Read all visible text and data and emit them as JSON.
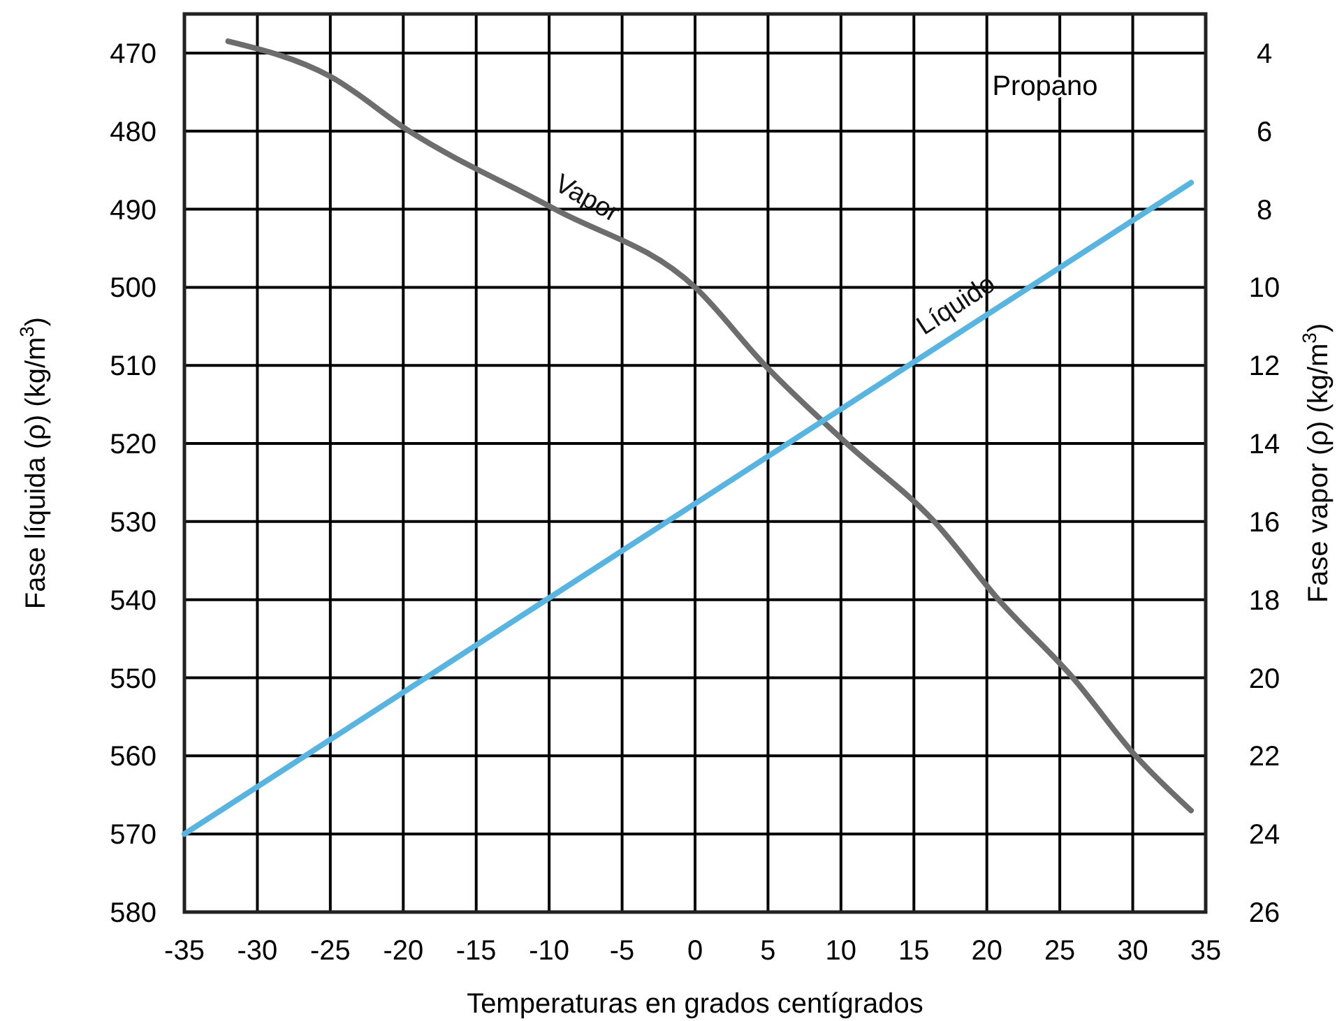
{
  "chart_data": {
    "type": "line",
    "xlabel": "Temperaturas en grados centígrados",
    "ylabel": "Fase líquida (ρ) (kg/m$^{3}$)",
    "y2label": "Fase vapor (ρ) (kg/m$^{3}$)",
    "annotations": [
      "Propano"
    ],
    "xlim": [
      -35,
      35
    ],
    "xticks": [
      -35,
      -30,
      -25,
      -20,
      -15,
      -10,
      -5,
      0,
      5,
      10,
      15,
      20,
      25,
      30,
      35
    ],
    "ylim": [
      580,
      465
    ],
    "yticks": [
      470,
      480,
      490,
      500,
      510,
      520,
      530,
      540,
      550,
      560,
      570,
      580
    ],
    "y2lim": [
      26,
      3
    ],
    "y2ticks": [
      4,
      6,
      8,
      10,
      12,
      14,
      16,
      18,
      20,
      22,
      24,
      26
    ],
    "grid": true,
    "line_style": "solid",
    "marker": "none",
    "series": [
      {
        "name": "Vapor",
        "color": "#6d6d6d",
        "axis": "y2",
        "x": [
          -32,
          -25,
          -19.6,
          -9.6,
          0,
          4.8,
          10.4,
          16.4,
          20.8,
          25.9,
          30.2,
          34
        ],
        "values": [
          3.7,
          4.6,
          6,
          8,
          10,
          12,
          14,
          16,
          18,
          20,
          22,
          23.4
        ]
      },
      {
        "name": "Líquido",
        "color": "#5ab4e0",
        "x": [
          -35,
          34
        ],
        "values": [
          570,
          486.6
        ]
      }
    ]
  }
}
